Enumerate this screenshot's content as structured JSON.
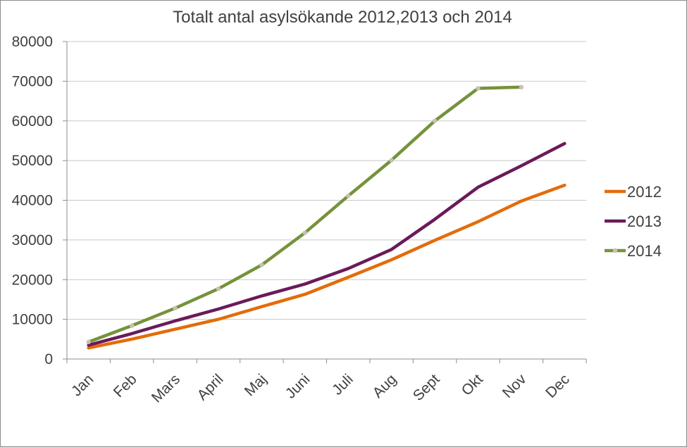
{
  "chart_data": {
    "type": "line",
    "title": "Totalt antal asylsökande 2012,2013 och 2014",
    "xlabel": "",
    "ylabel": "",
    "categories": [
      "Jan",
      "Feb",
      "Mars",
      "April",
      "Maj",
      "Juni",
      "Juli",
      "Aug",
      "Sept",
      "Okt",
      "Nov",
      "Dec"
    ],
    "yticks": [
      "0",
      "10000",
      "20000",
      "30000",
      "40000",
      "50000",
      "60000",
      "70000",
      "80000"
    ],
    "ylim": [
      0,
      80000
    ],
    "grid": "horizontal",
    "legend_position": "right",
    "series": [
      {
        "name": "2012",
        "color": "#e36c0a",
        "markers": false,
        "values": [
          2800,
          5000,
          7500,
          10000,
          13200,
          16300,
          20600,
          25000,
          29900,
          34600,
          39800,
          43800
        ]
      },
      {
        "name": "2013",
        "color": "#6b1a5a",
        "markers": false,
        "values": [
          3500,
          6400,
          9600,
          12600,
          15900,
          18900,
          22800,
          27600,
          35200,
          43300,
          48700,
          54300
        ]
      },
      {
        "name": "2014",
        "color": "#76923c",
        "markers": true,
        "marker_color": "#c9c0b4",
        "values": [
          4300,
          8400,
          12800,
          17700,
          23700,
          31800,
          41100,
          50100,
          60000,
          68200,
          68500,
          null
        ]
      }
    ]
  }
}
